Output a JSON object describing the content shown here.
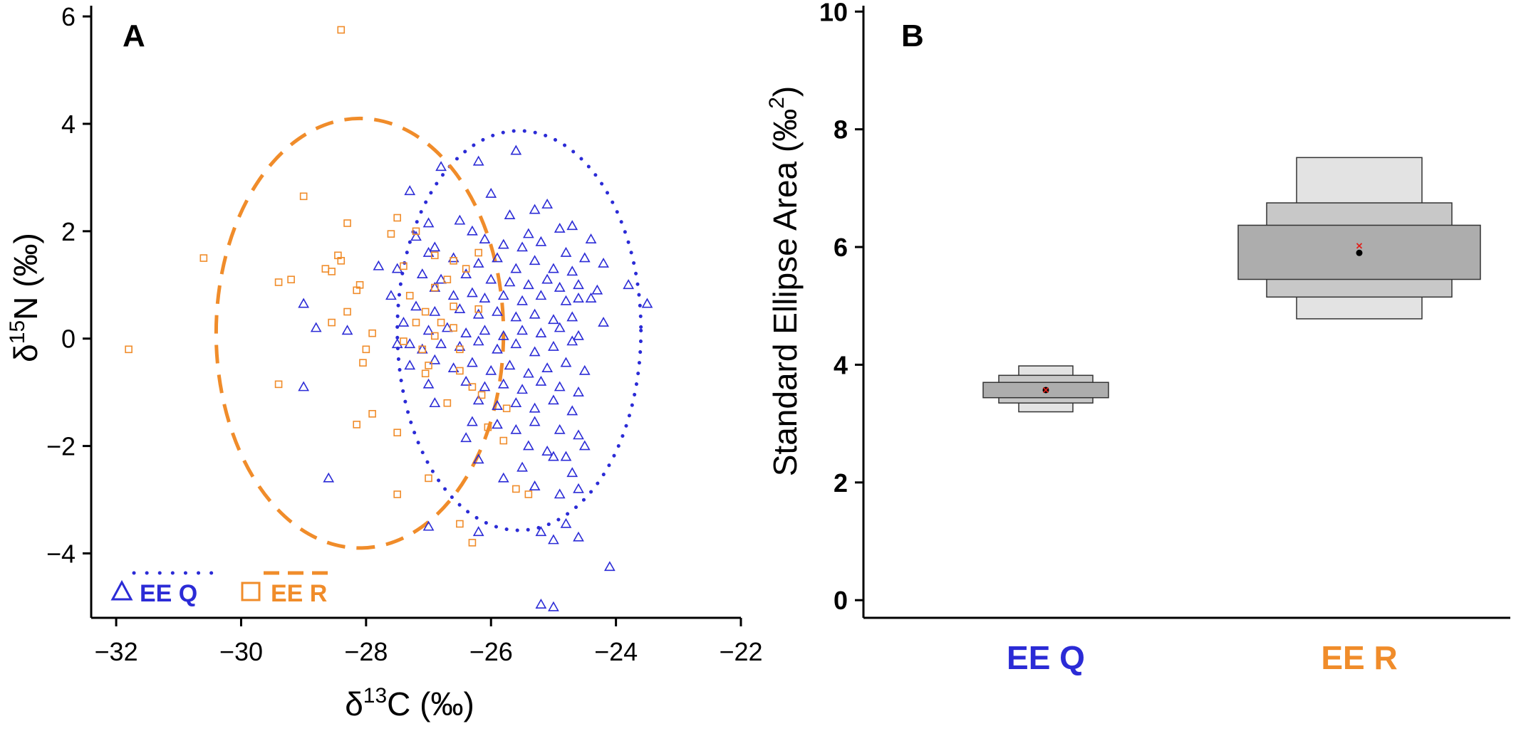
{
  "chart_data": [
    {
      "type": "scatter",
      "panel_label": "A",
      "xlabel": {
        "delta": "δ",
        "sup": "13",
        "rest": "C  (‰)"
      },
      "ylabel": {
        "delta": "δ",
        "sup": "15",
        "rest": "N  (‰)"
      },
      "xlim": [
        -32.4,
        -22
      ],
      "ylim": [
        -5.2,
        6.2
      ],
      "xticks": [
        -32,
        -30,
        -28,
        -26,
        -24,
        -22
      ],
      "xtick_labels": [
        "−32",
        "−30",
        "−28",
        "−26",
        "−24",
        "−22"
      ],
      "yticks": [
        -4,
        -2,
        0,
        2,
        4,
        6
      ],
      "ytick_labels": [
        "−4",
        "−2",
        "0",
        "2",
        "4",
        "6"
      ],
      "grid": false,
      "legend_position": "bottom-left",
      "series": [
        {
          "name": "EE Q",
          "marker": "triangle",
          "color": "#2b2bd6",
          "ellipse_style": "dotted",
          "ellipse": {
            "cx": -25.55,
            "cy": 0.15,
            "rx": 1.95,
            "ry": 3.72
          },
          "points": [
            [
              -25.6,
              3.5
            ],
            [
              -26.2,
              3.3
            ],
            [
              -27.3,
              2.75
            ],
            [
              -26.8,
              3.2
            ],
            [
              -25.3,
              2.4
            ],
            [
              -26,
              2.7
            ],
            [
              -25.1,
              2.5
            ],
            [
              -26.5,
              2.2
            ],
            [
              -25.7,
              2.3
            ],
            [
              -24.9,
              2.05
            ],
            [
              -27,
              2.15
            ],
            [
              -26.3,
              2
            ],
            [
              -25.4,
              1.95
            ],
            [
              -24.7,
              2.1
            ],
            [
              -24.4,
              1.85
            ],
            [
              -27.2,
              1.9
            ],
            [
              -26.9,
              1.7
            ],
            [
              -26.1,
              1.85
            ],
            [
              -25.8,
              1.75
            ],
            [
              -25.5,
              1.7
            ],
            [
              -25.2,
              1.8
            ],
            [
              -24.8,
              1.6
            ],
            [
              -24.5,
              1.5
            ],
            [
              -24.2,
              1.4
            ],
            [
              -26.6,
              1.5
            ],
            [
              -26.2,
              1.4
            ],
            [
              -25.9,
              1.5
            ],
            [
              -25.6,
              1.3
            ],
            [
              -25.3,
              1.45
            ],
            [
              -25,
              1.3
            ],
            [
              -24.7,
              1.25
            ],
            [
              -27.5,
              1.3
            ],
            [
              -27.1,
              1.2
            ],
            [
              -26.8,
              1.1
            ],
            [
              -26.4,
              1.2
            ],
            [
              -26,
              1.1
            ],
            [
              -25.7,
              1.05
            ],
            [
              -25.4,
              1
            ],
            [
              -25.1,
              1.1
            ],
            [
              -24.9,
              0.95
            ],
            [
              -24.6,
              1
            ],
            [
              -24.3,
              0.9
            ],
            [
              -26.6,
              0.8
            ],
            [
              -26.3,
              0.85
            ],
            [
              -26.1,
              0.75
            ],
            [
              -25.8,
              0.8
            ],
            [
              -25.5,
              0.7
            ],
            [
              -25.2,
              0.8
            ],
            [
              -24.8,
              0.7
            ],
            [
              -24.4,
              0.75
            ],
            [
              -27.6,
              0.8
            ],
            [
              -27.2,
              0.6
            ],
            [
              -26.9,
              0.5
            ],
            [
              -26.5,
              0.55
            ],
            [
              -26.2,
              0.45
            ],
            [
              -25.9,
              0.5
            ],
            [
              -25.6,
              0.4
            ],
            [
              -25.3,
              0.45
            ],
            [
              -25,
              0.35
            ],
            [
              -24.7,
              0.4
            ],
            [
              -24.2,
              0.3
            ],
            [
              -28.3,
              0.15
            ],
            [
              -27.4,
              0.3
            ],
            [
              -27,
              0.15
            ],
            [
              -26.7,
              0.2
            ],
            [
              -26.4,
              0.1
            ],
            [
              -26.1,
              0.15
            ],
            [
              -25.8,
              0.05
            ],
            [
              -25.5,
              0.15
            ],
            [
              -25.2,
              0.1
            ],
            [
              -24.9,
              0.2
            ],
            [
              -24.6,
              0.05
            ],
            [
              -27.5,
              -0.1
            ],
            [
              -27.1,
              -0.2
            ],
            [
              -26.8,
              -0.1
            ],
            [
              -26.5,
              -0.15
            ],
            [
              -26.2,
              -0.05
            ],
            [
              -25.9,
              -0.2
            ],
            [
              -25.6,
              -0.1
            ],
            [
              -25.3,
              -0.25
            ],
            [
              -25,
              -0.15
            ],
            [
              -24.7,
              -0.05
            ],
            [
              -27.3,
              -0.5
            ],
            [
              -26.9,
              -0.4
            ],
            [
              -26.6,
              -0.55
            ],
            [
              -26.3,
              -0.45
            ],
            [
              -26,
              -0.6
            ],
            [
              -25.7,
              -0.5
            ],
            [
              -25.4,
              -0.65
            ],
            [
              -25.1,
              -0.55
            ],
            [
              -24.8,
              -0.45
            ],
            [
              -24.5,
              -0.6
            ],
            [
              -27,
              -0.85
            ],
            [
              -26.4,
              -0.8
            ],
            [
              -26.1,
              -0.9
            ],
            [
              -25.8,
              -0.85
            ],
            [
              -25.5,
              -0.95
            ],
            [
              -25.2,
              -0.8
            ],
            [
              -24.9,
              -0.9
            ],
            [
              -24.6,
              -1
            ],
            [
              -26.9,
              -1.2
            ],
            [
              -26.2,
              -1.15
            ],
            [
              -25.9,
              -1.25
            ],
            [
              -25.6,
              -1.2
            ],
            [
              -25.3,
              -1.3
            ],
            [
              -25,
              -1.15
            ],
            [
              -24.7,
              -1.35
            ],
            [
              -26.3,
              -1.55
            ],
            [
              -25.9,
              -1.6
            ],
            [
              -25.6,
              -1.7
            ],
            [
              -25.3,
              -1.55
            ],
            [
              -24.9,
              -1.7
            ],
            [
              -24.6,
              -1.8
            ],
            [
              -25.4,
              -2
            ],
            [
              -25.1,
              -2.1
            ],
            [
              -24.8,
              -2.2
            ],
            [
              -24.5,
              -2
            ],
            [
              -26.2,
              -2.25
            ],
            [
              -25.5,
              -2.4
            ],
            [
              -25,
              -2.2
            ],
            [
              -24.7,
              -2.5
            ],
            [
              -25.8,
              -2.6
            ],
            [
              -25.3,
              -2.75
            ],
            [
              -24.9,
              -2.9
            ],
            [
              -24.6,
              -2.8
            ],
            [
              -29,
              -0.9
            ],
            [
              -28.6,
              -2.6
            ],
            [
              -28.8,
              0.2
            ],
            [
              -29,
              0.65
            ],
            [
              -25.2,
              -3.6
            ],
            [
              -24.8,
              -3.45
            ],
            [
              -25,
              -3.75
            ],
            [
              -24.6,
              -3.7
            ],
            [
              -24.1,
              -4.25
            ],
            [
              -25.2,
              -4.95
            ],
            [
              -25,
              -5
            ],
            [
              -27,
              -3.5
            ],
            [
              -26.2,
              -3.6
            ],
            [
              -23.5,
              0.65
            ],
            [
              -23.8,
              1
            ],
            [
              -24.6,
              0.75
            ],
            [
              -26.4,
              -1.85
            ],
            [
              -27.3,
              -0.1
            ],
            [
              -26.9,
              0.95
            ],
            [
              -27.8,
              1.35
            ],
            [
              -27,
              1.6
            ]
          ]
        },
        {
          "name": "EE R",
          "marker": "square",
          "color": "#f08c2a",
          "ellipse_style": "dashed",
          "ellipse": {
            "cx": -28.1,
            "cy": 0.1,
            "rx": 2.3,
            "ry": 4
          },
          "points": [
            [
              -28.4,
              5.75
            ],
            [
              -30.6,
              1.5
            ],
            [
              -31.8,
              -0.2
            ],
            [
              -29,
              2.65
            ],
            [
              -28.3,
              2.15
            ],
            [
              -28.45,
              1.55
            ],
            [
              -28.65,
              1.3
            ],
            [
              -28.55,
              1.25
            ],
            [
              -28.4,
              1.45
            ],
            [
              -28.1,
              1
            ],
            [
              -28.15,
              0.9
            ],
            [
              -29.4,
              1.05
            ],
            [
              -29.2,
              1.1
            ],
            [
              -28.3,
              0.5
            ],
            [
              -28.55,
              0.3
            ],
            [
              -27.9,
              0.1
            ],
            [
              -28,
              -0.2
            ],
            [
              -28.05,
              -0.45
            ],
            [
              -29.4,
              -0.85
            ],
            [
              -27.9,
              -1.4
            ],
            [
              -28.15,
              -1.6
            ],
            [
              -27.5,
              -1.75
            ],
            [
              -27.6,
              1.95
            ],
            [
              -27.5,
              2.25
            ],
            [
              -27.2,
              2
            ],
            [
              -27.4,
              1.35
            ],
            [
              -26.9,
              1.55
            ],
            [
              -26.6,
              1.45
            ],
            [
              -26.2,
              1.6
            ],
            [
              -26.4,
              1.3
            ],
            [
              -26.7,
              1.1
            ],
            [
              -26.9,
              0.95
            ],
            [
              -27.3,
              0.8
            ],
            [
              -27.05,
              0.5
            ],
            [
              -26.6,
              0.6
            ],
            [
              -26.2,
              0.55
            ],
            [
              -27.2,
              0.3
            ],
            [
              -26.8,
              0.3
            ],
            [
              -26.6,
              0.2
            ],
            [
              -26.9,
              0.05
            ],
            [
              -27.4,
              -0.05
            ],
            [
              -27.1,
              -0.2
            ],
            [
              -26.5,
              -0.2
            ],
            [
              -27,
              -0.5
            ],
            [
              -26.5,
              -0.6
            ],
            [
              -27.05,
              -0.65
            ],
            [
              -26.3,
              -0.9
            ],
            [
              -26.7,
              -1.2
            ],
            [
              -26.15,
              -1.05
            ],
            [
              -25.75,
              -1.3
            ],
            [
              -26.05,
              -1.65
            ],
            [
              -25.8,
              -1.9
            ],
            [
              -25.6,
              -2.8
            ],
            [
              -25.4,
              -2.9
            ],
            [
              -27.5,
              -2.9
            ],
            [
              -27,
              -2.6
            ],
            [
              -26.5,
              -3.45
            ],
            [
              -26.3,
              -3.8
            ]
          ]
        }
      ]
    },
    {
      "type": "box",
      "panel_label": "B",
      "ylabel": {
        "text": "Standard Ellipse Area (‰",
        "sup": "2",
        "close": ")"
      },
      "ylim": [
        -0.3,
        10.1
      ],
      "yticks": [
        0,
        2,
        4,
        6,
        8,
        10
      ],
      "ytick_labels": [
        "0",
        "2",
        "4",
        "6",
        "8",
        "10"
      ],
      "categories": [
        "EE Q",
        "EE R"
      ],
      "category_colors": [
        "#2b2bd6",
        "#f08c2a"
      ],
      "grid": false,
      "groups": [
        {
          "name": "EE Q",
          "credible_intervals": [
            [
              3.2,
              3.98
            ],
            [
              3.35,
              3.82
            ],
            [
              3.44,
              3.7
            ]
          ],
          "mode": 3.57,
          "sea_c": 3.57
        },
        {
          "name": "EE R",
          "credible_intervals": [
            [
              4.78,
              7.52
            ],
            [
              5.15,
              6.75
            ],
            [
              5.45,
              6.37
            ]
          ],
          "mode": 5.9,
          "sea_c": 6.02
        }
      ]
    }
  ]
}
